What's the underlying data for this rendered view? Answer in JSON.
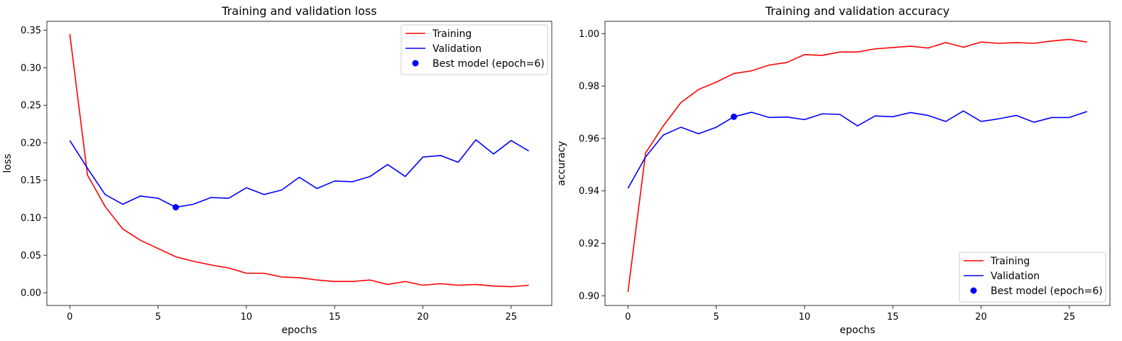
{
  "chart_data": [
    {
      "type": "line",
      "title": "Training and validation loss",
      "xlabel": "epochs",
      "ylabel": "loss",
      "xlim": [
        -1.3,
        27.3
      ],
      "ylim": [
        -0.017,
        0.362
      ],
      "xticks": [
        0,
        5,
        10,
        15,
        20,
        25
      ],
      "xtick_labels": [
        "0",
        "5",
        "10",
        "15",
        "20",
        "25"
      ],
      "yticks": [
        0.0,
        0.05,
        0.1,
        0.15,
        0.2,
        0.25,
        0.3,
        0.35
      ],
      "ytick_labels": [
        "0.00",
        "0.05",
        "0.10",
        "0.15",
        "0.20",
        "0.25",
        "0.30",
        "0.35"
      ],
      "legend_position": "upper right",
      "x": [
        0,
        1,
        2,
        3,
        4,
        5,
        6,
        7,
        8,
        9,
        10,
        11,
        12,
        13,
        14,
        15,
        16,
        17,
        18,
        19,
        20,
        21,
        22,
        23,
        24,
        25,
        26
      ],
      "series": [
        {
          "name": "Training",
          "color": "#ff0000",
          "values": [
            0.345,
            0.157,
            0.115,
            0.085,
            0.07,
            0.059,
            0.048,
            0.042,
            0.037,
            0.033,
            0.026,
            0.026,
            0.021,
            0.02,
            0.017,
            0.015,
            0.015,
            0.017,
            0.011,
            0.015,
            0.01,
            0.012,
            0.01,
            0.011,
            0.009,
            0.008,
            0.01
          ]
        },
        {
          "name": "Validation",
          "color": "#0000ff",
          "values": [
            0.203,
            0.166,
            0.131,
            0.118,
            0.129,
            0.126,
            0.114,
            0.118,
            0.127,
            0.126,
            0.14,
            0.131,
            0.137,
            0.154,
            0.139,
            0.149,
            0.148,
            0.155,
            0.171,
            0.155,
            0.181,
            0.183,
            0.174,
            0.204,
            0.185,
            0.203,
            0.189
          ]
        }
      ],
      "marker": {
        "name": "Best model (epoch=6)",
        "x": 6,
        "y": 0.114,
        "color": "#0000ff"
      }
    },
    {
      "type": "line",
      "title": "Training and validation accuracy",
      "xlabel": "epochs",
      "ylabel": "accuracy",
      "xlim": [
        -1.3,
        27.3
      ],
      "ylim": [
        0.8963,
        1.0047
      ],
      "xticks": [
        0,
        5,
        10,
        15,
        20,
        25
      ],
      "xtick_labels": [
        "0",
        "5",
        "10",
        "15",
        "20",
        "25"
      ],
      "yticks": [
        0.9,
        0.92,
        0.94,
        0.96,
        0.98,
        1.0
      ],
      "ytick_labels": [
        "0.90",
        "0.92",
        "0.94",
        "0.96",
        "0.98",
        "1.00"
      ],
      "legend_position": "lower right",
      "x": [
        0,
        1,
        2,
        3,
        4,
        5,
        6,
        7,
        8,
        9,
        10,
        11,
        12,
        13,
        14,
        15,
        16,
        17,
        18,
        19,
        20,
        21,
        22,
        23,
        24,
        25,
        26
      ],
      "series": [
        {
          "name": "Training",
          "color": "#ff0000",
          "values": [
            0.9015,
            0.9545,
            0.9648,
            0.9737,
            0.9787,
            0.9815,
            0.9848,
            0.9858,
            0.988,
            0.989,
            0.992,
            0.9917,
            0.993,
            0.993,
            0.9942,
            0.9947,
            0.9952,
            0.9945,
            0.9966,
            0.9948,
            0.9968,
            0.9963,
            0.9966,
            0.9963,
            0.9972,
            0.9978,
            0.9968
          ]
        },
        {
          "name": "Validation",
          "color": "#0000ff",
          "values": [
            0.941,
            0.953,
            0.9613,
            0.9643,
            0.9618,
            0.9643,
            0.9683,
            0.97,
            0.968,
            0.9682,
            0.9672,
            0.9694,
            0.9692,
            0.9648,
            0.9686,
            0.9683,
            0.9699,
            0.9688,
            0.9665,
            0.9705,
            0.9665,
            0.9675,
            0.9688,
            0.9662,
            0.968,
            0.968,
            0.9703
          ]
        }
      ],
      "marker": {
        "name": "Best model (epoch=6)",
        "x": 6,
        "y": 0.9683,
        "color": "#0000ff"
      }
    }
  ]
}
